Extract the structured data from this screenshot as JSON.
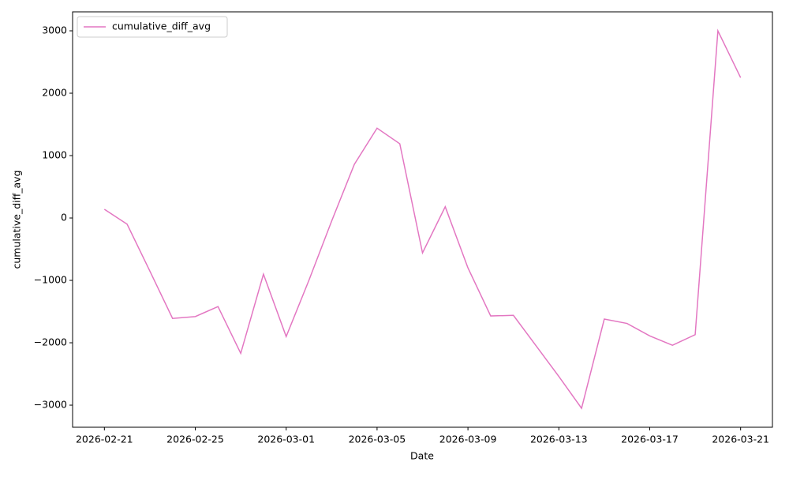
{
  "chart_data": {
    "type": "line",
    "x_label": "Date",
    "y_label": "cumulative_diff_avg",
    "x": [
      "2026-02-21",
      "2026-02-22",
      "2026-02-23",
      "2026-02-24",
      "2026-02-25",
      "2026-02-26",
      "2026-02-27",
      "2026-02-28",
      "2026-03-01",
      "2026-03-02",
      "2026-03-03",
      "2026-03-04",
      "2026-03-05",
      "2026-03-06",
      "2026-03-07",
      "2026-03-08",
      "2026-03-09",
      "2026-03-10",
      "2026-03-11",
      "2026-03-12",
      "2026-03-13",
      "2026-03-14",
      "2026-03-15",
      "2026-03-16",
      "2026-03-17",
      "2026-03-18",
      "2026-03-19",
      "2026-03-20",
      "2026-03-21"
    ],
    "series": [
      {
        "name": "cumulative_diff_avg",
        "color": "#e377c2",
        "values": [
          140,
          -100,
          -850,
          -1610,
          -1580,
          -1420,
          -2170,
          -900,
          -1900,
          -1000,
          -50,
          860,
          1440,
          1190,
          -560,
          180,
          -800,
          -1570,
          -1560,
          -2050,
          -2540,
          -3050,
          -1620,
          -1690,
          -1890,
          -2040,
          -1870,
          3000,
          2250
        ]
      }
    ],
    "ylim": [
      -3354,
      3304
    ],
    "yticks": [
      {
        "value": -3000,
        "label": "−3000"
      },
      {
        "value": -2000,
        "label": "−2000"
      },
      {
        "value": -1000,
        "label": "−1000"
      },
      0,
      1000,
      2000,
      3000
    ],
    "xticks": [
      "2026-02-21",
      "2026-02-25",
      "2026-03-01",
      "2026-03-05",
      "2026-03-09",
      "2026-03-13",
      "2026-03-17",
      "2026-03-21"
    ],
    "legend": "upper left",
    "grid": false
  }
}
